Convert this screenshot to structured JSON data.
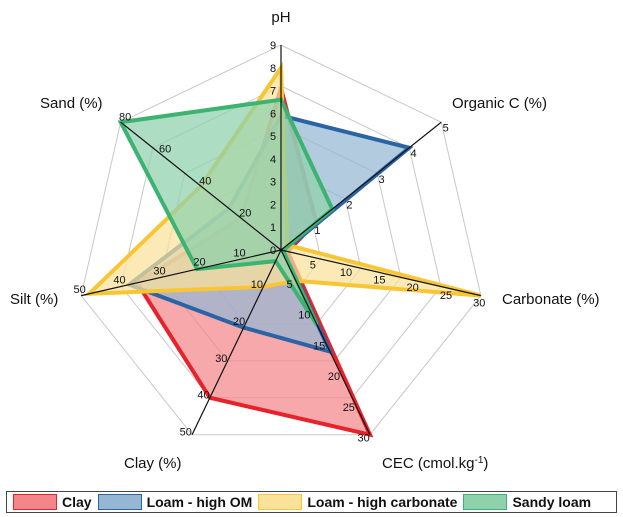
{
  "chart_data": {
    "type": "radar",
    "axes": [
      {
        "label": "pH",
        "label_html": "pH",
        "min": 0,
        "max": 9,
        "ticks": [
          0,
          1,
          2,
          3,
          4,
          5,
          6,
          7,
          8,
          9
        ],
        "tick_labels": [
          "0",
          "1",
          "2",
          "3",
          "4",
          "5",
          "6",
          "7",
          "8",
          "9"
        ]
      },
      {
        "label": "Organic C (%)",
        "label_html": "Organic C (%)",
        "min": 0,
        "max": 5,
        "ticks": [
          1,
          2,
          3,
          4,
          5
        ],
        "tick_labels": [
          "1",
          "2",
          "3",
          "4",
          "5"
        ]
      },
      {
        "label": "Carbonate (%)",
        "label_html": "Carbonate (%)",
        "min": 0,
        "max": 30,
        "ticks": [
          5,
          10,
          15,
          20,
          25,
          30
        ],
        "tick_labels": [
          "5",
          "10",
          "15",
          "20",
          "25",
          "30"
        ]
      },
      {
        "label": "CEC (cmol.kg-1)",
        "label_html": "CEC (cmol.kg<tspan baseline-shift='super' font-size='10'>-1</tspan>)",
        "min": 0,
        "max": 30,
        "ticks": [
          5,
          10,
          15,
          20,
          25,
          30
        ],
        "tick_labels": [
          "5",
          "10",
          "15",
          "20",
          "25",
          "30"
        ]
      },
      {
        "label": "Clay (%)",
        "label_html": "Clay (%)",
        "min": 0,
        "max": 50,
        "ticks": [
          10,
          20,
          30,
          40,
          50
        ],
        "tick_labels": [
          "10",
          "20",
          "30",
          "40",
          "50"
        ]
      },
      {
        "label": "Silt (%)",
        "label_html": "Silt (%)",
        "min": 0,
        "max": 50,
        "ticks": [
          10,
          20,
          30,
          40,
          50
        ],
        "tick_labels": [
          "10",
          "20",
          "30",
          "40",
          "50"
        ]
      },
      {
        "label": "Sand (%)",
        "label_html": "Sand (%)",
        "min": 0,
        "max": 80,
        "ticks": [
          20,
          40,
          60,
          80
        ],
        "tick_labels": [
          "20",
          "40",
          "60",
          "80"
        ]
      }
    ],
    "series": [
      {
        "name": "Clay",
        "values": [
          7.1,
          1.1,
          1.0,
          30,
          40,
          36,
          20
        ],
        "stroke": "#e8222a",
        "fill": "#f2868b"
      },
      {
        "name": "Loam - high OM",
        "values": [
          5.9,
          4.0,
          0.5,
          16.5,
          21,
          38,
          26
        ],
        "stroke": "#2b64a4",
        "fill": "#96b7d3"
      },
      {
        "name": "Loam - high carbonate",
        "values": [
          8.0,
          0.2,
          30,
          5,
          10,
          48,
          40
        ],
        "stroke": "#f8c534",
        "fill": "#fbe29a"
      },
      {
        "name": "Sandy loam",
        "values": [
          6.6,
          1.6,
          0.3,
          12.2,
          3,
          21,
          80
        ],
        "stroke": "#3cb371",
        "fill": "#8ed1ac"
      }
    ],
    "grid": true,
    "legend": "bottom"
  },
  "colors": {
    "grid": "#c8c8c8",
    "axis": "#111111"
  }
}
